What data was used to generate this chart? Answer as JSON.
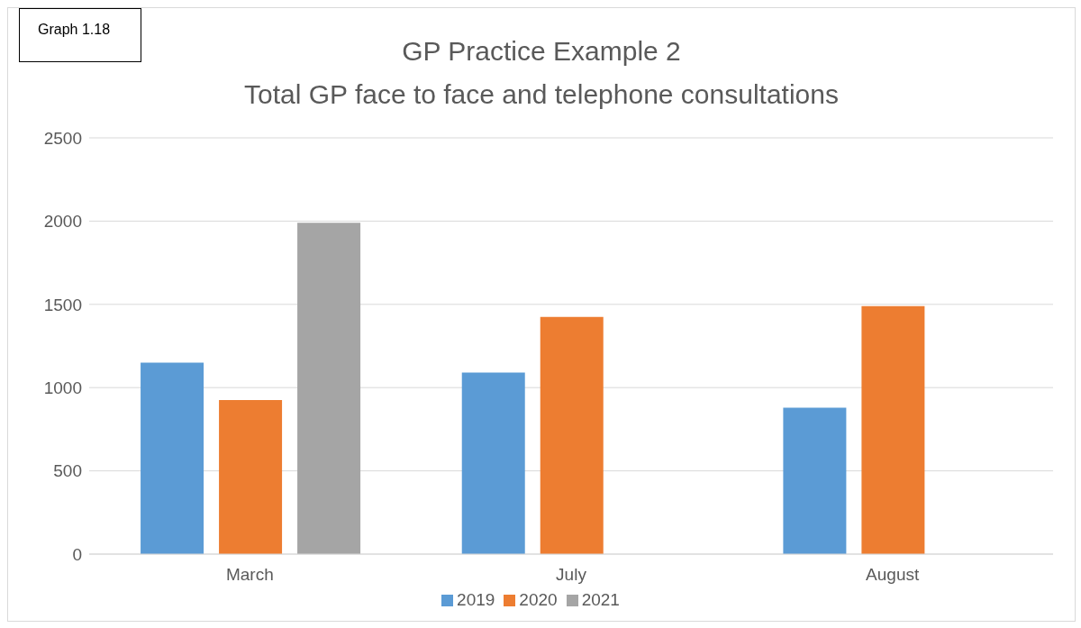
{
  "chart_data": {
    "type": "bar",
    "title": "GP Practice Example 2",
    "subtitle": "Total GP face to face and telephone consultations",
    "annotations": [
      "Graph 1.18"
    ],
    "categories": [
      "March",
      "July",
      "August"
    ],
    "series": [
      {
        "name": "2019",
        "color": "#5b9bd5",
        "values": [
          1150,
          1090,
          880
        ]
      },
      {
        "name": "2020",
        "color": "#ed7d31",
        "values": [
          925,
          1425,
          1490
        ]
      },
      {
        "name": "2021",
        "color": "#a5a5a5",
        "values": [
          1990,
          null,
          null
        ]
      }
    ],
    "ylim": [
      0,
      2500
    ],
    "yticks": [
      0,
      500,
      1000,
      1500,
      2000,
      2500
    ],
    "grid": "y",
    "legend": "bottom"
  }
}
